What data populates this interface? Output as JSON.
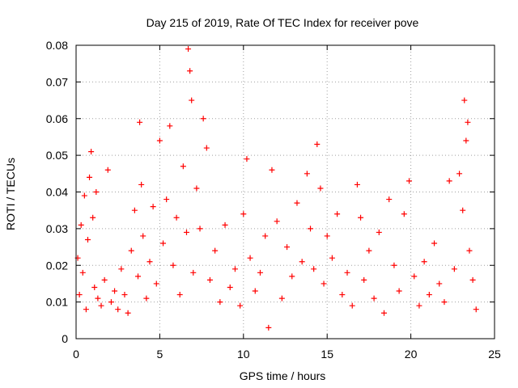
{
  "chart_data": {
    "type": "scatter",
    "title": "Day 215 of 2019, Rate Of TEC Index for receiver pove",
    "xlabel": "GPS time / hours",
    "ylabel": "ROTI / TECUs",
    "xlim": [
      0,
      25
    ],
    "ylim": [
      0,
      0.08
    ],
    "xticks": [
      "0",
      "5",
      "10",
      "15",
      "20",
      "25"
    ],
    "yticks": [
      "0",
      "0.01",
      "0.02",
      "0.03",
      "0.04",
      "0.05",
      "0.06",
      "0.07",
      "0.08"
    ],
    "grid": true,
    "marker": "plus",
    "color": "#ff0000",
    "series": [
      {
        "points": [
          [
            0.1,
            0.022
          ],
          [
            0.2,
            0.012
          ],
          [
            0.3,
            0.031
          ],
          [
            0.4,
            0.018
          ],
          [
            0.5,
            0.039
          ],
          [
            0.6,
            0.008
          ],
          [
            0.7,
            0.027
          ],
          [
            0.8,
            0.044
          ],
          [
            0.9,
            0.051
          ],
          [
            1.0,
            0.033
          ],
          [
            1.1,
            0.014
          ],
          [
            1.2,
            0.04
          ],
          [
            1.3,
            0.011
          ],
          [
            1.5,
            0.009
          ],
          [
            1.7,
            0.016
          ],
          [
            1.9,
            0.046
          ],
          [
            2.1,
            0.01
          ],
          [
            2.3,
            0.013
          ],
          [
            2.5,
            0.008
          ],
          [
            2.7,
            0.019
          ],
          [
            2.9,
            0.012
          ],
          [
            3.1,
            0.007
          ],
          [
            3.3,
            0.024
          ],
          [
            3.5,
            0.035
          ],
          [
            3.7,
            0.017
          ],
          [
            3.8,
            0.059
          ],
          [
            3.9,
            0.042
          ],
          [
            4.0,
            0.028
          ],
          [
            4.2,
            0.011
          ],
          [
            4.4,
            0.021
          ],
          [
            4.6,
            0.036
          ],
          [
            4.8,
            0.015
          ],
          [
            5.0,
            0.054
          ],
          [
            5.2,
            0.026
          ],
          [
            5.4,
            0.038
          ],
          [
            5.6,
            0.058
          ],
          [
            5.8,
            0.02
          ],
          [
            6.0,
            0.033
          ],
          [
            6.2,
            0.012
          ],
          [
            6.4,
            0.047
          ],
          [
            6.6,
            0.029
          ],
          [
            6.7,
            0.079
          ],
          [
            6.8,
            0.073
          ],
          [
            6.9,
            0.065
          ],
          [
            7.0,
            0.018
          ],
          [
            7.2,
            0.041
          ],
          [
            7.4,
            0.03
          ],
          [
            7.6,
            0.06
          ],
          [
            7.8,
            0.052
          ],
          [
            8.0,
            0.016
          ],
          [
            8.3,
            0.024
          ],
          [
            8.6,
            0.01
          ],
          [
            8.9,
            0.031
          ],
          [
            9.2,
            0.014
          ],
          [
            9.5,
            0.019
          ],
          [
            9.8,
            0.009
          ],
          [
            10.0,
            0.034
          ],
          [
            10.2,
            0.049
          ],
          [
            10.4,
            0.022
          ],
          [
            10.7,
            0.013
          ],
          [
            11.0,
            0.018
          ],
          [
            11.3,
            0.028
          ],
          [
            11.5,
            0.003
          ],
          [
            11.7,
            0.046
          ],
          [
            12.0,
            0.032
          ],
          [
            12.3,
            0.011
          ],
          [
            12.6,
            0.025
          ],
          [
            12.9,
            0.017
          ],
          [
            13.2,
            0.037
          ],
          [
            13.5,
            0.021
          ],
          [
            13.8,
            0.045
          ],
          [
            14.0,
            0.03
          ],
          [
            14.2,
            0.019
          ],
          [
            14.4,
            0.053
          ],
          [
            14.6,
            0.041
          ],
          [
            14.8,
            0.015
          ],
          [
            15.0,
            0.028
          ],
          [
            15.3,
            0.022
          ],
          [
            15.6,
            0.034
          ],
          [
            15.9,
            0.012
          ],
          [
            16.2,
            0.018
          ],
          [
            16.5,
            0.009
          ],
          [
            16.8,
            0.042
          ],
          [
            17.0,
            0.033
          ],
          [
            17.2,
            0.016
          ],
          [
            17.5,
            0.024
          ],
          [
            17.8,
            0.011
          ],
          [
            18.1,
            0.029
          ],
          [
            18.4,
            0.007
          ],
          [
            18.7,
            0.038
          ],
          [
            19.0,
            0.02
          ],
          [
            19.3,
            0.013
          ],
          [
            19.6,
            0.034
          ],
          [
            19.9,
            0.043
          ],
          [
            20.2,
            0.017
          ],
          [
            20.5,
            0.009
          ],
          [
            20.8,
            0.021
          ],
          [
            21.1,
            0.012
          ],
          [
            21.4,
            0.026
          ],
          [
            21.7,
            0.015
          ],
          [
            22.0,
            0.01
          ],
          [
            22.3,
            0.043
          ],
          [
            22.6,
            0.019
          ],
          [
            22.9,
            0.045
          ],
          [
            23.1,
            0.035
          ],
          [
            23.2,
            0.065
          ],
          [
            23.3,
            0.054
          ],
          [
            23.4,
            0.059
          ],
          [
            23.5,
            0.024
          ],
          [
            23.7,
            0.016
          ],
          [
            23.9,
            0.008
          ]
        ]
      }
    ]
  }
}
